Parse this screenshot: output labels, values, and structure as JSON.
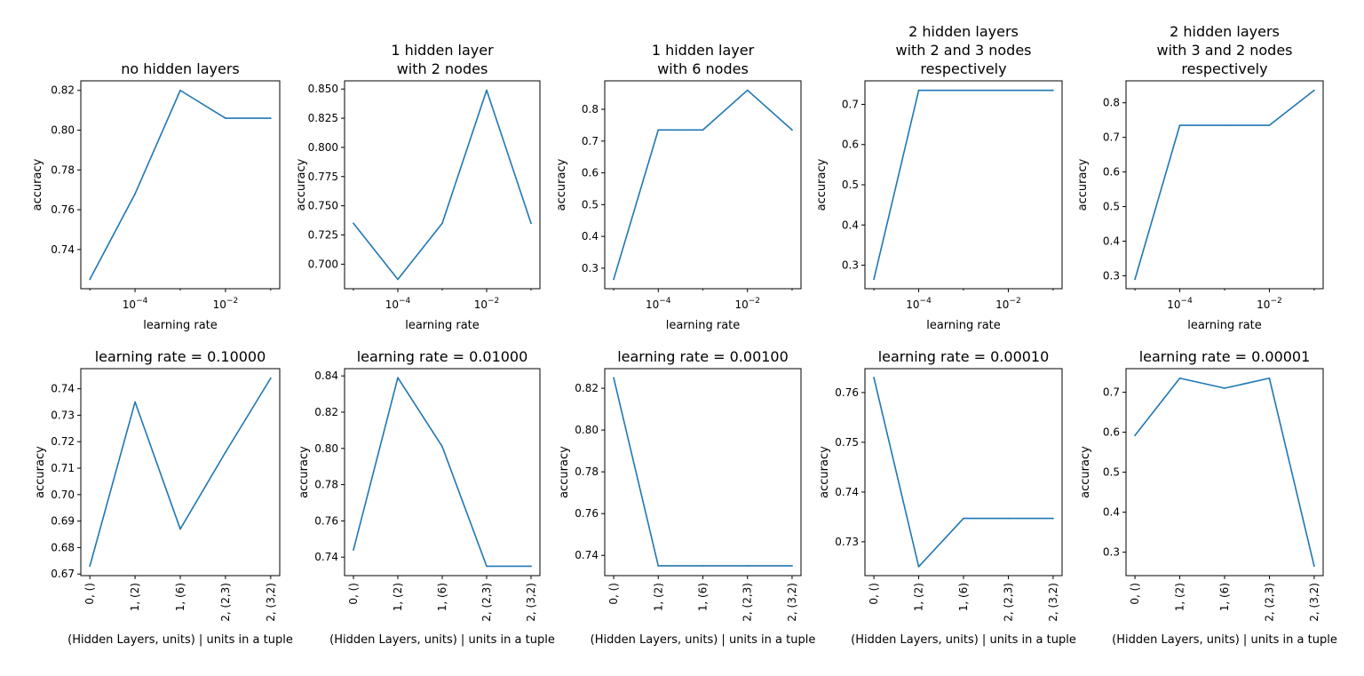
{
  "colors": {
    "line": "#1f77b4",
    "axes": "#000000",
    "background": "#ffffff"
  },
  "chart_data": [
    {
      "type": "line",
      "xscale": "log",
      "title": [
        "no hidden layers"
      ],
      "xlabel": "learning rate",
      "ylabel": "accuracy",
      "x": [
        1e-05,
        0.0001,
        0.001,
        0.01,
        0.1
      ],
      "y": [
        0.725,
        0.768,
        0.82,
        0.806,
        0.806
      ],
      "ylim": [
        0.7203,
        0.8248
      ],
      "yticks": [
        0.74,
        0.76,
        0.78,
        0.8,
        0.82
      ],
      "yticklabels": [
        "0.74",
        "0.76",
        "0.78",
        "0.80",
        "0.82"
      ],
      "xticks": [
        0.0001,
        0.01
      ],
      "xticklabels": [
        "10−4",
        "10−2"
      ]
    },
    {
      "type": "line",
      "xscale": "log",
      "title": [
        "1 hidden layer",
        "with 2 nodes"
      ],
      "xlabel": "learning rate",
      "ylabel": "accuracy",
      "x": [
        1e-05,
        0.0001,
        0.001,
        0.01,
        0.1
      ],
      "y": [
        0.735,
        0.687,
        0.735,
        0.849,
        0.735
      ],
      "ylim": [
        0.679,
        0.857
      ],
      "yticks": [
        0.7,
        0.725,
        0.75,
        0.775,
        0.8,
        0.825,
        0.85
      ],
      "yticklabels": [
        "0.700",
        "0.725",
        "0.750",
        "0.775",
        "0.800",
        "0.825",
        "0.850"
      ],
      "xticks": [
        0.0001,
        0.01
      ],
      "xticklabels": [
        "10−4",
        "10−2"
      ]
    },
    {
      "type": "line",
      "xscale": "log",
      "title": [
        "1 hidden layer",
        "with 6 nodes"
      ],
      "xlabel": "learning rate",
      "ylabel": "accuracy",
      "x": [
        1e-05,
        0.0001,
        0.001,
        0.01,
        0.1
      ],
      "y": [
        0.265,
        0.735,
        0.735,
        0.86,
        0.735
      ],
      "ylim": [
        0.2355,
        0.8895
      ],
      "yticks": [
        0.3,
        0.4,
        0.5,
        0.6,
        0.7,
        0.8
      ],
      "yticklabels": [
        "0.3",
        "0.4",
        "0.5",
        "0.6",
        "0.7",
        "0.8"
      ],
      "xticks": [
        0.0001,
        0.01
      ],
      "xticklabels": [
        "10−4",
        "10−2"
      ]
    },
    {
      "type": "line",
      "xscale": "log",
      "title": [
        "2 hidden layers",
        "with 2 and 3 nodes",
        "respectively"
      ],
      "xlabel": "learning rate",
      "ylabel": "accuracy",
      "x": [
        1e-05,
        0.0001,
        0.001,
        0.01,
        0.1
      ],
      "y": [
        0.265,
        0.735,
        0.735,
        0.735,
        0.735
      ],
      "ylim": [
        0.2415,
        0.7585
      ],
      "yticks": [
        0.3,
        0.4,
        0.5,
        0.6,
        0.7
      ],
      "yticklabels": [
        "0.3",
        "0.4",
        "0.5",
        "0.6",
        "0.7"
      ],
      "xticks": [
        0.0001,
        0.01
      ],
      "xticklabels": [
        "10−4",
        "10−2"
      ]
    },
    {
      "type": "line",
      "xscale": "log",
      "title": [
        "2 hidden layers",
        "with 3 and 2 nodes",
        "respectively"
      ],
      "xlabel": "learning rate",
      "ylabel": "accuracy",
      "x": [
        1e-05,
        0.0001,
        0.001,
        0.01,
        0.1
      ],
      "y": [
        0.29,
        0.735,
        0.735,
        0.735,
        0.836
      ],
      "ylim": [
        0.2627,
        0.8634
      ],
      "yticks": [
        0.3,
        0.4,
        0.5,
        0.6,
        0.7,
        0.8
      ],
      "yticklabels": [
        "0.3",
        "0.4",
        "0.5",
        "0.6",
        "0.7",
        "0.8"
      ],
      "xticks": [
        0.0001,
        0.01
      ],
      "xticklabels": [
        "10−4",
        "10−2"
      ]
    },
    {
      "type": "line",
      "xscale": "category",
      "title": [
        "learning rate = 0.10000"
      ],
      "xlabel": "(Hidden Layers, units) | units in a tuple",
      "ylabel": "accuracy",
      "categories": [
        "0, ()",
        "1, (2)",
        "1, (6)",
        "2, (2,3)",
        "2, (3,2)"
      ],
      "y": [
        0.673,
        0.735,
        0.687,
        0.716,
        0.744
      ],
      "ylim": [
        0.6694,
        0.7476
      ],
      "yticks": [
        0.67,
        0.68,
        0.69,
        0.7,
        0.71,
        0.72,
        0.73,
        0.74
      ],
      "yticklabels": [
        "0.67",
        "0.68",
        "0.69",
        "0.70",
        "0.71",
        "0.72",
        "0.73",
        "0.74"
      ]
    },
    {
      "type": "line",
      "xscale": "category",
      "title": [
        "learning rate = 0.01000"
      ],
      "xlabel": "(Hidden Layers, units) | units in a tuple",
      "ylabel": "accuracy",
      "categories": [
        "0, ()",
        "1, (2)",
        "1, (6)",
        "2, (2,3)",
        "2, (3,2)"
      ],
      "y": [
        0.744,
        0.839,
        0.801,
        0.735,
        0.735
      ],
      "ylim": [
        0.7298,
        0.844
      ],
      "yticks": [
        0.74,
        0.76,
        0.78,
        0.8,
        0.82,
        0.84
      ],
      "yticklabels": [
        "0.74",
        "0.76",
        "0.78",
        "0.80",
        "0.82",
        "0.84"
      ]
    },
    {
      "type": "line",
      "xscale": "category",
      "title": [
        "learning rate = 0.00100"
      ],
      "xlabel": "(Hidden Layers, units) | units in a tuple",
      "ylabel": "accuracy",
      "categories": [
        "0, ()",
        "1, (2)",
        "1, (6)",
        "2, (2,3)",
        "2, (3,2)"
      ],
      "y": [
        0.825,
        0.735,
        0.735,
        0.735,
        0.735
      ],
      "ylim": [
        0.7303,
        0.8294
      ],
      "yticks": [
        0.74,
        0.76,
        0.78,
        0.8,
        0.82
      ],
      "yticklabels": [
        "0.74",
        "0.76",
        "0.78",
        "0.80",
        "0.82"
      ]
    },
    {
      "type": "line",
      "xscale": "category",
      "title": [
        "learning rate = 0.00010"
      ],
      "xlabel": "(Hidden Layers, units) | units in a tuple",
      "ylabel": "accuracy",
      "categories": [
        "0, ()",
        "1, (2)",
        "1, (6)",
        "2, (2,3)",
        "2, (3,2)"
      ],
      "y": [
        0.763,
        0.725,
        0.7347,
        0.7347,
        0.7347
      ],
      "ylim": [
        0.7232,
        0.7648
      ],
      "yticks": [
        0.73,
        0.74,
        0.75,
        0.76
      ],
      "yticklabels": [
        "0.73",
        "0.74",
        "0.75",
        "0.76"
      ]
    },
    {
      "type": "line",
      "xscale": "category",
      "title": [
        "learning rate = 0.00001"
      ],
      "xlabel": "(Hidden Layers, units) | units in a tuple",
      "ylabel": "accuracy",
      "categories": [
        "0, ()",
        "1, (2)",
        "1, (6)",
        "2, (2,3)",
        "2, (3,2)"
      ],
      "y": [
        0.592,
        0.735,
        0.71,
        0.735,
        0.265
      ],
      "ylim": [
        0.2413,
        0.7589
      ],
      "yticks": [
        0.3,
        0.4,
        0.5,
        0.6,
        0.7
      ],
      "yticklabels": [
        "0.3",
        "0.4",
        "0.5",
        "0.6",
        "0.7"
      ]
    }
  ]
}
